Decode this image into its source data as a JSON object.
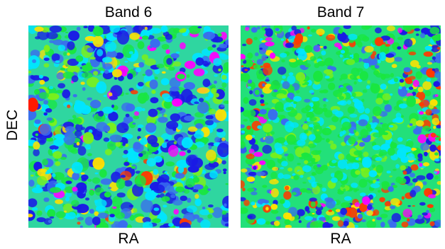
{
  "panels": [
    {
      "title": "Band 6",
      "xlabel": "RA",
      "pattern": "uniform"
    },
    {
      "title": "Band 7",
      "xlabel": "RA",
      "pattern": "noisy-edge"
    }
  ],
  "ylabel": "DEC",
  "colormap": [
    "#1a1ae6",
    "#3a6cf0",
    "#00e5ff",
    "#19e640",
    "#7cf01a",
    "#ffe100",
    "#ff3a00",
    "#ff00ff"
  ]
}
